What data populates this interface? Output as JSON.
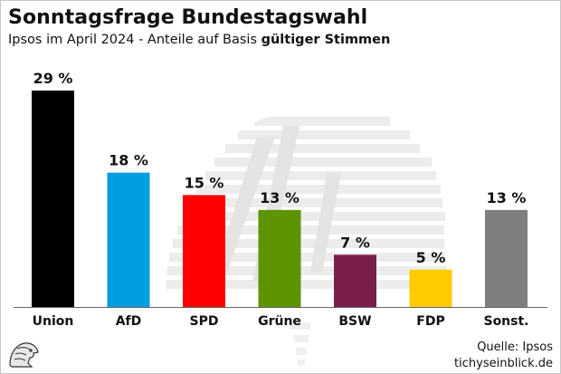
{
  "header": {
    "title": "Sonntagsfrage Bundestagswahl",
    "subtitle_prefix": "Ipsos im April 2024 - Anteile auf Basis ",
    "subtitle_bold": "gültiger Stimmen"
  },
  "chart_data": {
    "type": "bar",
    "title": "Sonntagsfrage Bundestagswahl",
    "subtitle": "Ipsos im April 2024 - Anteile auf Basis gültiger Stimmen",
    "categories": [
      "Union",
      "AfD",
      "SPD",
      "Grüne",
      "BSW",
      "FDP",
      "Sonst."
    ],
    "values": [
      29,
      18,
      15,
      13,
      7,
      5,
      13
    ],
    "value_labels": [
      "29 %",
      "18 %",
      "15 %",
      "13 %",
      "7 %",
      "5 %",
      "13 %"
    ],
    "colors": [
      "#000000",
      "#009ee0",
      "#ff0000",
      "#5e9400",
      "#7a1f4c",
      "#ffcc00",
      "#7f7f7f"
    ],
    "unit": "%",
    "ylim": [
      0,
      29
    ],
    "grid": false,
    "legend": "none"
  },
  "footer": {
    "source": "Quelle: Ipsos",
    "site": "tichyseinblick.de"
  },
  "logo": {
    "icon": "eagle-head-icon"
  }
}
